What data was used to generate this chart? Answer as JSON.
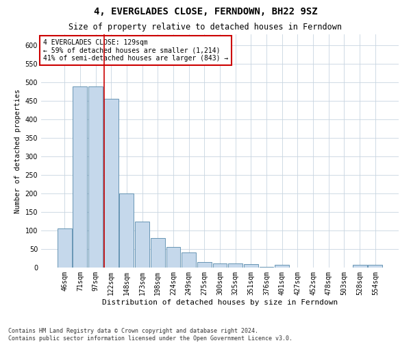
{
  "title": "4, EVERGLADES CLOSE, FERNDOWN, BH22 9SZ",
  "subtitle": "Size of property relative to detached houses in Ferndown",
  "xlabel": "Distribution of detached houses by size in Ferndown",
  "ylabel": "Number of detached properties",
  "categories": [
    "46sqm",
    "71sqm",
    "97sqm",
    "122sqm",
    "148sqm",
    "173sqm",
    "198sqm",
    "224sqm",
    "249sqm",
    "275sqm",
    "300sqm",
    "325sqm",
    "351sqm",
    "376sqm",
    "401sqm",
    "427sqm",
    "452sqm",
    "478sqm",
    "503sqm",
    "528sqm",
    "554sqm"
  ],
  "values": [
    105,
    490,
    490,
    455,
    200,
    125,
    80,
    55,
    40,
    15,
    12,
    12,
    10,
    1,
    8,
    0,
    0,
    0,
    0,
    8,
    8
  ],
  "bar_color": "#c5d8eb",
  "bar_edge_color": "#5588aa",
  "ylim": [
    0,
    630
  ],
  "yticks": [
    0,
    50,
    100,
    150,
    200,
    250,
    300,
    350,
    400,
    450,
    500,
    550,
    600
  ],
  "red_line_x": 2.57,
  "annotation_text": "4 EVERGLADES CLOSE: 129sqm\n← 59% of detached houses are smaller (1,214)\n41% of semi-detached houses are larger (843) →",
  "annotation_box_color": "#ffffff",
  "annotation_box_edge": "#cc0000",
  "footer": "Contains HM Land Registry data © Crown copyright and database right 2024.\nContains public sector information licensed under the Open Government Licence v3.0.",
  "title_fontsize": 10,
  "subtitle_fontsize": 8.5,
  "xlabel_fontsize": 8,
  "ylabel_fontsize": 7.5,
  "tick_fontsize": 7,
  "annotation_fontsize": 7,
  "footer_fontsize": 6,
  "background_color": "#ffffff",
  "grid_color": "#c8d4e0"
}
